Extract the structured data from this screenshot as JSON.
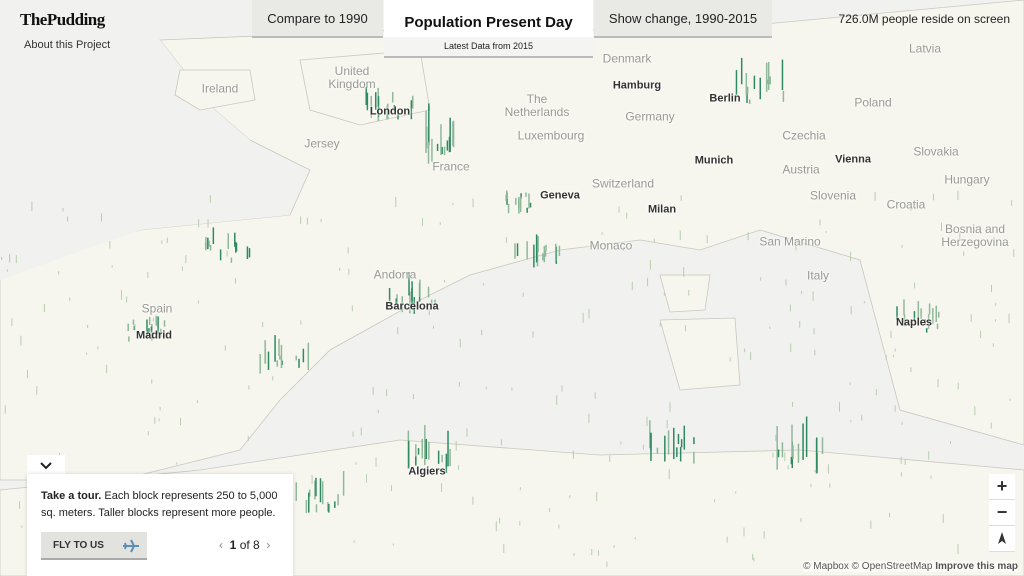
{
  "brand": {
    "logo": "ThePudding",
    "about": "About this Project"
  },
  "tabs": {
    "left": "Compare to 1990",
    "active": "Population Present Day",
    "active_sub": "Latest Data from 2015",
    "right": "Show change, 1990-2015"
  },
  "counter": "726.0M people reside on screen",
  "tour": {
    "lead": "Take a tour.",
    "text": "Each block represents 250 to 5,000 sq. meters. Taller blocks represent more people.",
    "button": "FLY TO US",
    "current": 1,
    "of": "of 8"
  },
  "zoom": {
    "in": "+",
    "out": "−"
  },
  "attribution": {
    "mapbox": "© Mapbox",
    "osm": "© OpenStreetMap",
    "improve": "Improve this map"
  },
  "map_labels": [
    {
      "name": "Ireland",
      "bold": false
    },
    {
      "name": "United Kingdom",
      "bold": false
    },
    {
      "name": "London",
      "bold": true
    },
    {
      "name": "Jersey",
      "bold": false
    },
    {
      "name": "The Netherlands",
      "bold": false
    },
    {
      "name": "Denmark",
      "bold": false
    },
    {
      "name": "Hamburg",
      "bold": true
    },
    {
      "name": "Berlin",
      "bold": true
    },
    {
      "name": "Poland",
      "bold": false
    },
    {
      "name": "Latvia",
      "bold": false
    },
    {
      "name": "Germany",
      "bold": false
    },
    {
      "name": "Luxembourg",
      "bold": false
    },
    {
      "name": "Czechia",
      "bold": false
    },
    {
      "name": "France",
      "bold": false
    },
    {
      "name": "Munich",
      "bold": true
    },
    {
      "name": "Vienna",
      "bold": true
    },
    {
      "name": "Slovakia",
      "bold": false
    },
    {
      "name": "Austria",
      "bold": false
    },
    {
      "name": "Hungary",
      "bold": false
    },
    {
      "name": "Switzerland",
      "bold": false
    },
    {
      "name": "Geneva",
      "bold": true
    },
    {
      "name": "Milan",
      "bold": true
    },
    {
      "name": "Slovenia",
      "bold": false
    },
    {
      "name": "Croatia",
      "bold": false
    },
    {
      "name": "Monaco",
      "bold": false
    },
    {
      "name": "San Marino",
      "bold": false
    },
    {
      "name": "Bosnia and Herzegovina",
      "bold": false
    },
    {
      "name": "Andorra",
      "bold": false
    },
    {
      "name": "Spain",
      "bold": false
    },
    {
      "name": "Madrid",
      "bold": true
    },
    {
      "name": "Barcelona",
      "bold": true
    },
    {
      "name": "Italy",
      "bold": false
    },
    {
      "name": "Naples",
      "bold": true
    },
    {
      "name": "Algiers",
      "bold": true
    }
  ]
}
